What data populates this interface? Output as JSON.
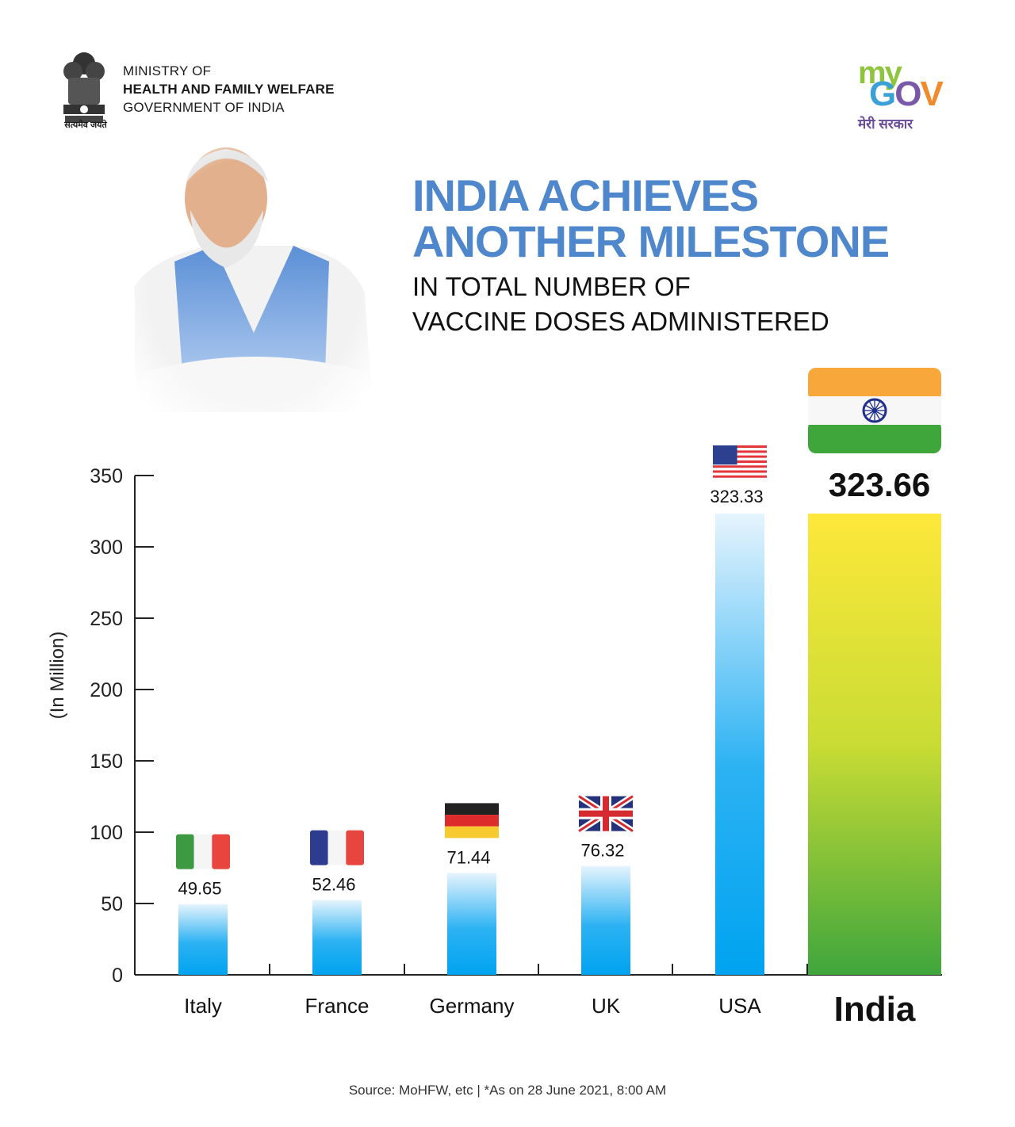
{
  "header": {
    "ministry": [
      "MINISTRY OF",
      "HEALTH AND FAMILY WELFARE",
      "GOVERNMENT OF INDIA"
    ],
    "emblem_motto": "सत्यमेव जयते",
    "mygov": {
      "my": "my",
      "gov_g": "G",
      "gov_o": "O",
      "gov_v": "V",
      "hindi": "मेरी सरकार"
    }
  },
  "headline": {
    "line1": "INDIA ACHIEVES",
    "line2": "ANOTHER MILESTONE",
    "line3": "IN TOTAL NUMBER OF",
    "line4": "VACCINE DOSES ADMINISTERED"
  },
  "chart_data": {
    "type": "bar",
    "categories": [
      "Italy",
      "France",
      "Germany",
      "UK",
      "USA",
      "India"
    ],
    "values": [
      49.65,
      52.46,
      71.44,
      76.32,
      323.33,
      323.66
    ],
    "value_labels": [
      "49.65",
      "52.46",
      "71.44",
      "76.32",
      "323.33",
      "323.66"
    ],
    "ylabel": "(In Million)",
    "ylim": [
      0,
      350
    ],
    "yticks": [
      0,
      50,
      100,
      150,
      200,
      250,
      300,
      350
    ],
    "highlight": "India",
    "flags": [
      "italy-flag-icon",
      "france-flag-icon",
      "germany-flag-icon",
      "uk-flag-icon",
      "usa-flag-icon",
      "india-flag-icon"
    ],
    "colors": {
      "bar_top": "#e6f4fd",
      "bar_bottom": "#00a3f0",
      "india_top": "#fde83a",
      "india_bottom": "#3fa63c"
    }
  },
  "footer": {
    "source": "Source: MoHFW, etc   |   *As on 28 June 2021, 8:00 AM"
  }
}
